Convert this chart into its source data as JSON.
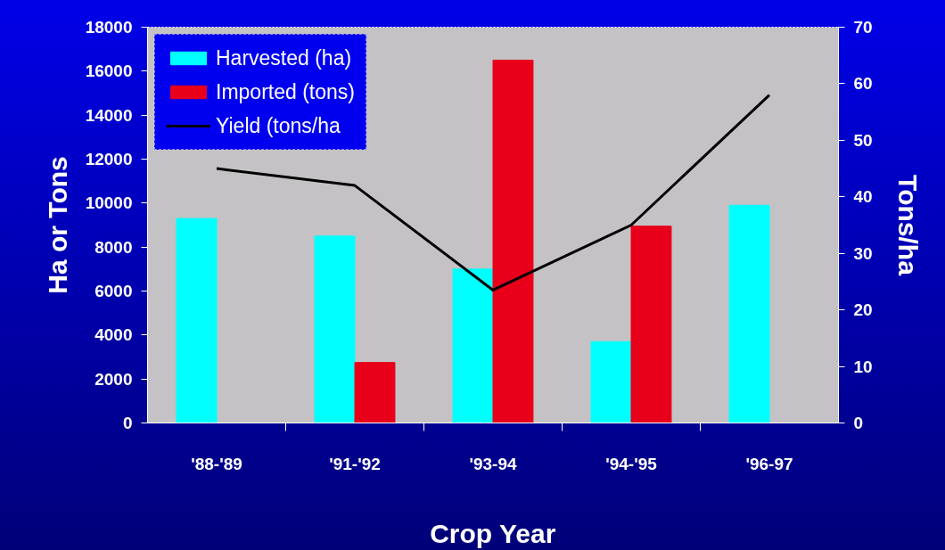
{
  "chart_data": {
    "type": "bar",
    "xlabel": "Crop Year",
    "ylabel": "Ha or Tons",
    "y2label": "Tons/ha",
    "categories": [
      "'88-'89",
      "'91-'92",
      "'93-94",
      "'94-'95",
      "'96-97"
    ],
    "series": [
      {
        "name": "Harvested (ha)",
        "color": "#00ffff",
        "values": [
          9300,
          8500,
          7000,
          3700,
          9900
        ]
      },
      {
        "name": "Imported (tons)",
        "color": "#e8001a",
        "values": [
          null,
          2750,
          16500,
          8950,
          null
        ]
      },
      {
        "name": "Yield (tons/ha",
        "type": "line",
        "axis": "y2",
        "color": "#000000",
        "values": [
          45,
          42,
          23.5,
          35,
          58
        ]
      }
    ],
    "ylim": [
      0,
      18000
    ],
    "yticks": [
      0,
      2000,
      4000,
      6000,
      8000,
      10000,
      12000,
      14000,
      16000,
      18000
    ],
    "y2lim": [
      0,
      70
    ],
    "y2ticks": [
      0,
      10,
      20,
      30,
      40,
      50,
      60,
      70
    ],
    "grid": false,
    "legend": "top left"
  }
}
